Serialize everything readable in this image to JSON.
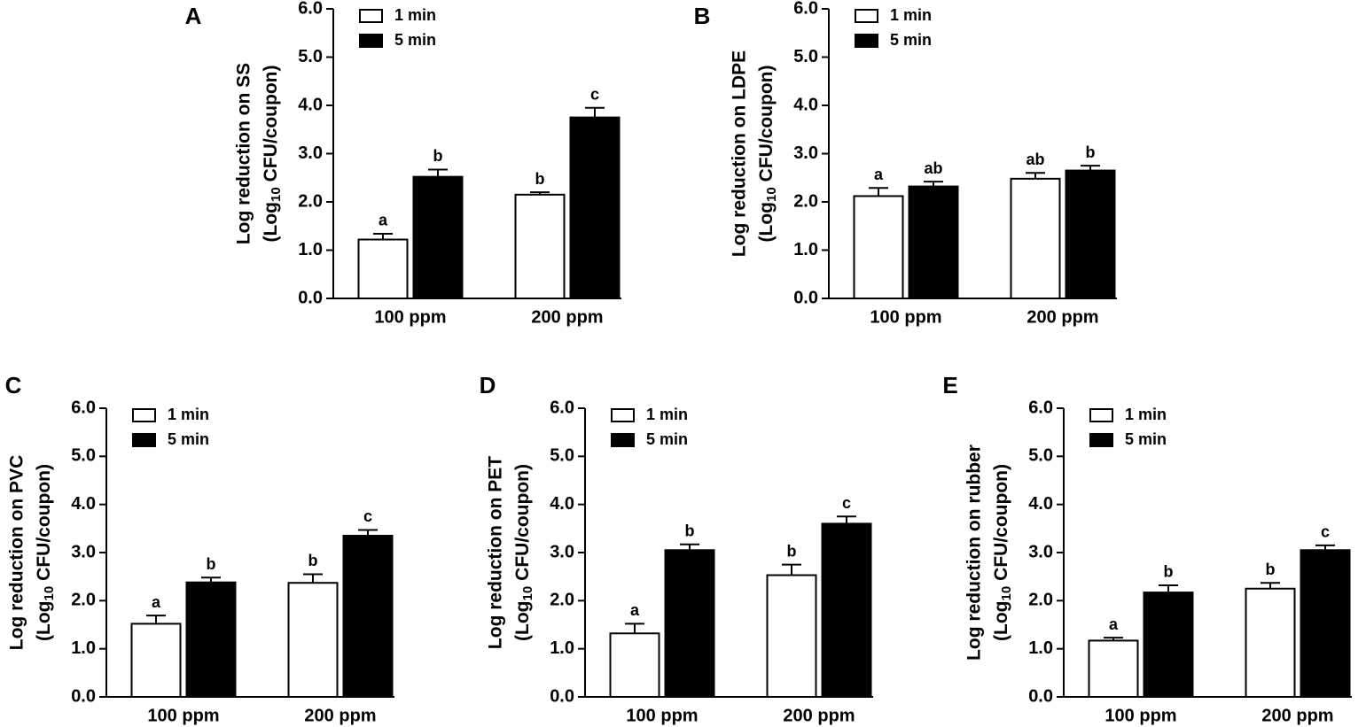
{
  "chart_data": [
    {
      "type": "bar",
      "panel": "A",
      "ylabel": [
        "Log reduction on SS",
        "(Log",
        "10",
        "CFU/coupon)"
      ],
      "categories": [
        "100 ppm",
        "200 ppm"
      ],
      "series": [
        {
          "name": "1 min",
          "color": "#ffffff",
          "values": [
            1.22,
            2.15
          ],
          "errors": [
            0.12,
            0.05
          ],
          "letters": [
            "a",
            "b"
          ]
        },
        {
          "name": "5 min",
          "color": "#000000",
          "values": [
            2.52,
            3.75
          ],
          "errors": [
            0.15,
            0.2
          ],
          "letters": [
            "b",
            "c"
          ]
        }
      ],
      "ylim": [
        0,
        6
      ],
      "yticks": [
        {
          "value": 0,
          "label": "0.0"
        },
        {
          "value": 1,
          "label": "1.0"
        },
        {
          "value": 2,
          "label": "2.0"
        },
        {
          "value": 3,
          "label": "3.0"
        },
        {
          "value": 4,
          "label": "4.0"
        },
        {
          "value": 5,
          "label": "5.0"
        },
        {
          "value": 6,
          "label": "6.0"
        }
      ]
    },
    {
      "type": "bar",
      "panel": "B",
      "ylabel": [
        "Log reduction on LDPE",
        "(Log",
        "10",
        "CFU/coupon)"
      ],
      "categories": [
        "100 ppm",
        "200 ppm"
      ],
      "series": [
        {
          "name": "1 min",
          "color": "#ffffff",
          "values": [
            2.12,
            2.48
          ],
          "errors": [
            0.17,
            0.12
          ],
          "letters": [
            "a",
            "ab"
          ]
        },
        {
          "name": "5 min",
          "color": "#000000",
          "values": [
            2.32,
            2.65
          ],
          "errors": [
            0.1,
            0.1
          ],
          "letters": [
            "ab",
            "b"
          ]
        }
      ],
      "ylim": [
        0,
        6
      ],
      "yticks": [
        {
          "value": 0,
          "label": "0.0"
        },
        {
          "value": 1,
          "label": "1.0"
        },
        {
          "value": 2,
          "label": "2.0"
        },
        {
          "value": 3,
          "label": "3.0"
        },
        {
          "value": 4,
          "label": "4.0"
        },
        {
          "value": 5,
          "label": "5.0"
        },
        {
          "value": 6,
          "label": "6.0"
        }
      ]
    },
    {
      "type": "bar",
      "panel": "C",
      "ylabel": [
        "Log reduction on PVC",
        "(Log",
        "10",
        "CFU/coupon)"
      ],
      "categories": [
        "100 ppm",
        "200 ppm"
      ],
      "series": [
        {
          "name": "1 min",
          "color": "#ffffff",
          "values": [
            1.52,
            2.37
          ],
          "errors": [
            0.17,
            0.18
          ],
          "letters": [
            "a",
            "b"
          ]
        },
        {
          "name": "5 min",
          "color": "#000000",
          "values": [
            2.38,
            3.35
          ],
          "errors": [
            0.1,
            0.12
          ],
          "letters": [
            "b",
            "c"
          ]
        }
      ],
      "ylim": [
        0,
        6
      ],
      "yticks": [
        {
          "value": 0,
          "label": "0.0"
        },
        {
          "value": 1,
          "label": "1.0"
        },
        {
          "value": 2,
          "label": "2.0"
        },
        {
          "value": 3,
          "label": "3.0"
        },
        {
          "value": 4,
          "label": "4.0"
        },
        {
          "value": 5,
          "label": "5.0"
        },
        {
          "value": 6,
          "label": "6.0"
        }
      ]
    },
    {
      "type": "bar",
      "panel": "D",
      "ylabel": [
        "Log reduction on PET",
        "(Log",
        "10",
        "CFU/coupon)"
      ],
      "categories": [
        "100 ppm",
        "200 ppm"
      ],
      "series": [
        {
          "name": "1 min",
          "color": "#ffffff",
          "values": [
            1.32,
            2.53
          ],
          "errors": [
            0.2,
            0.22
          ],
          "letters": [
            "a",
            "b"
          ]
        },
        {
          "name": "5 min",
          "color": "#000000",
          "values": [
            3.05,
            3.6
          ],
          "errors": [
            0.12,
            0.15
          ],
          "letters": [
            "b",
            "c"
          ]
        }
      ],
      "ylim": [
        0,
        6
      ],
      "yticks": [
        {
          "value": 0,
          "label": "0.0"
        },
        {
          "value": 1,
          "label": "1.0"
        },
        {
          "value": 2,
          "label": "2.0"
        },
        {
          "value": 3,
          "label": "3.0"
        },
        {
          "value": 4,
          "label": "4.0"
        },
        {
          "value": 5,
          "label": "5.0"
        },
        {
          "value": 6,
          "label": "6.0"
        }
      ]
    },
    {
      "type": "bar",
      "panel": "E",
      "ylabel": [
        "Log reduction on rubber",
        "(Log",
        "10",
        "CFU/coupon)"
      ],
      "categories": [
        "100 ppm",
        "200 ppm"
      ],
      "series": [
        {
          "name": "1 min",
          "color": "#ffffff",
          "values": [
            1.17,
            2.25
          ],
          "errors": [
            0.06,
            0.12
          ],
          "letters": [
            "a",
            "b"
          ]
        },
        {
          "name": "5 min",
          "color": "#000000",
          "values": [
            2.17,
            3.05
          ],
          "errors": [
            0.15,
            0.1
          ],
          "letters": [
            "b",
            "c"
          ]
        }
      ],
      "ylim": [
        0,
        6
      ],
      "yticks": [
        {
          "value": 0,
          "label": "0.0"
        },
        {
          "value": 1,
          "label": "1.0"
        },
        {
          "value": 2,
          "label": "2.0"
        },
        {
          "value": 3,
          "label": "3.0"
        },
        {
          "value": 4,
          "label": "4.0"
        },
        {
          "value": 5,
          "label": "5.0"
        },
        {
          "value": 6,
          "label": "6.0"
        }
      ]
    }
  ]
}
